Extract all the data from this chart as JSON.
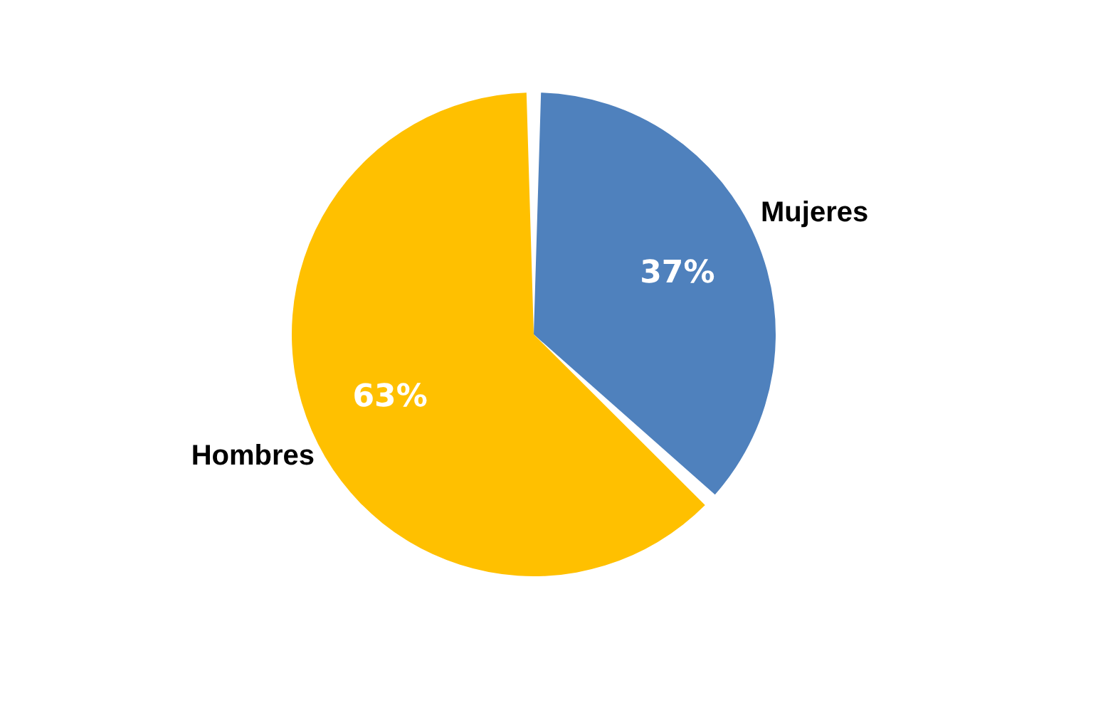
{
  "chart_data": {
    "type": "pie",
    "categories": [
      "Mujeres",
      "Hombres"
    ],
    "values": [
      37,
      63
    ],
    "colors": [
      "#4f81bd",
      "#ffc000"
    ],
    "value_labels": [
      "37%",
      "63%"
    ]
  }
}
